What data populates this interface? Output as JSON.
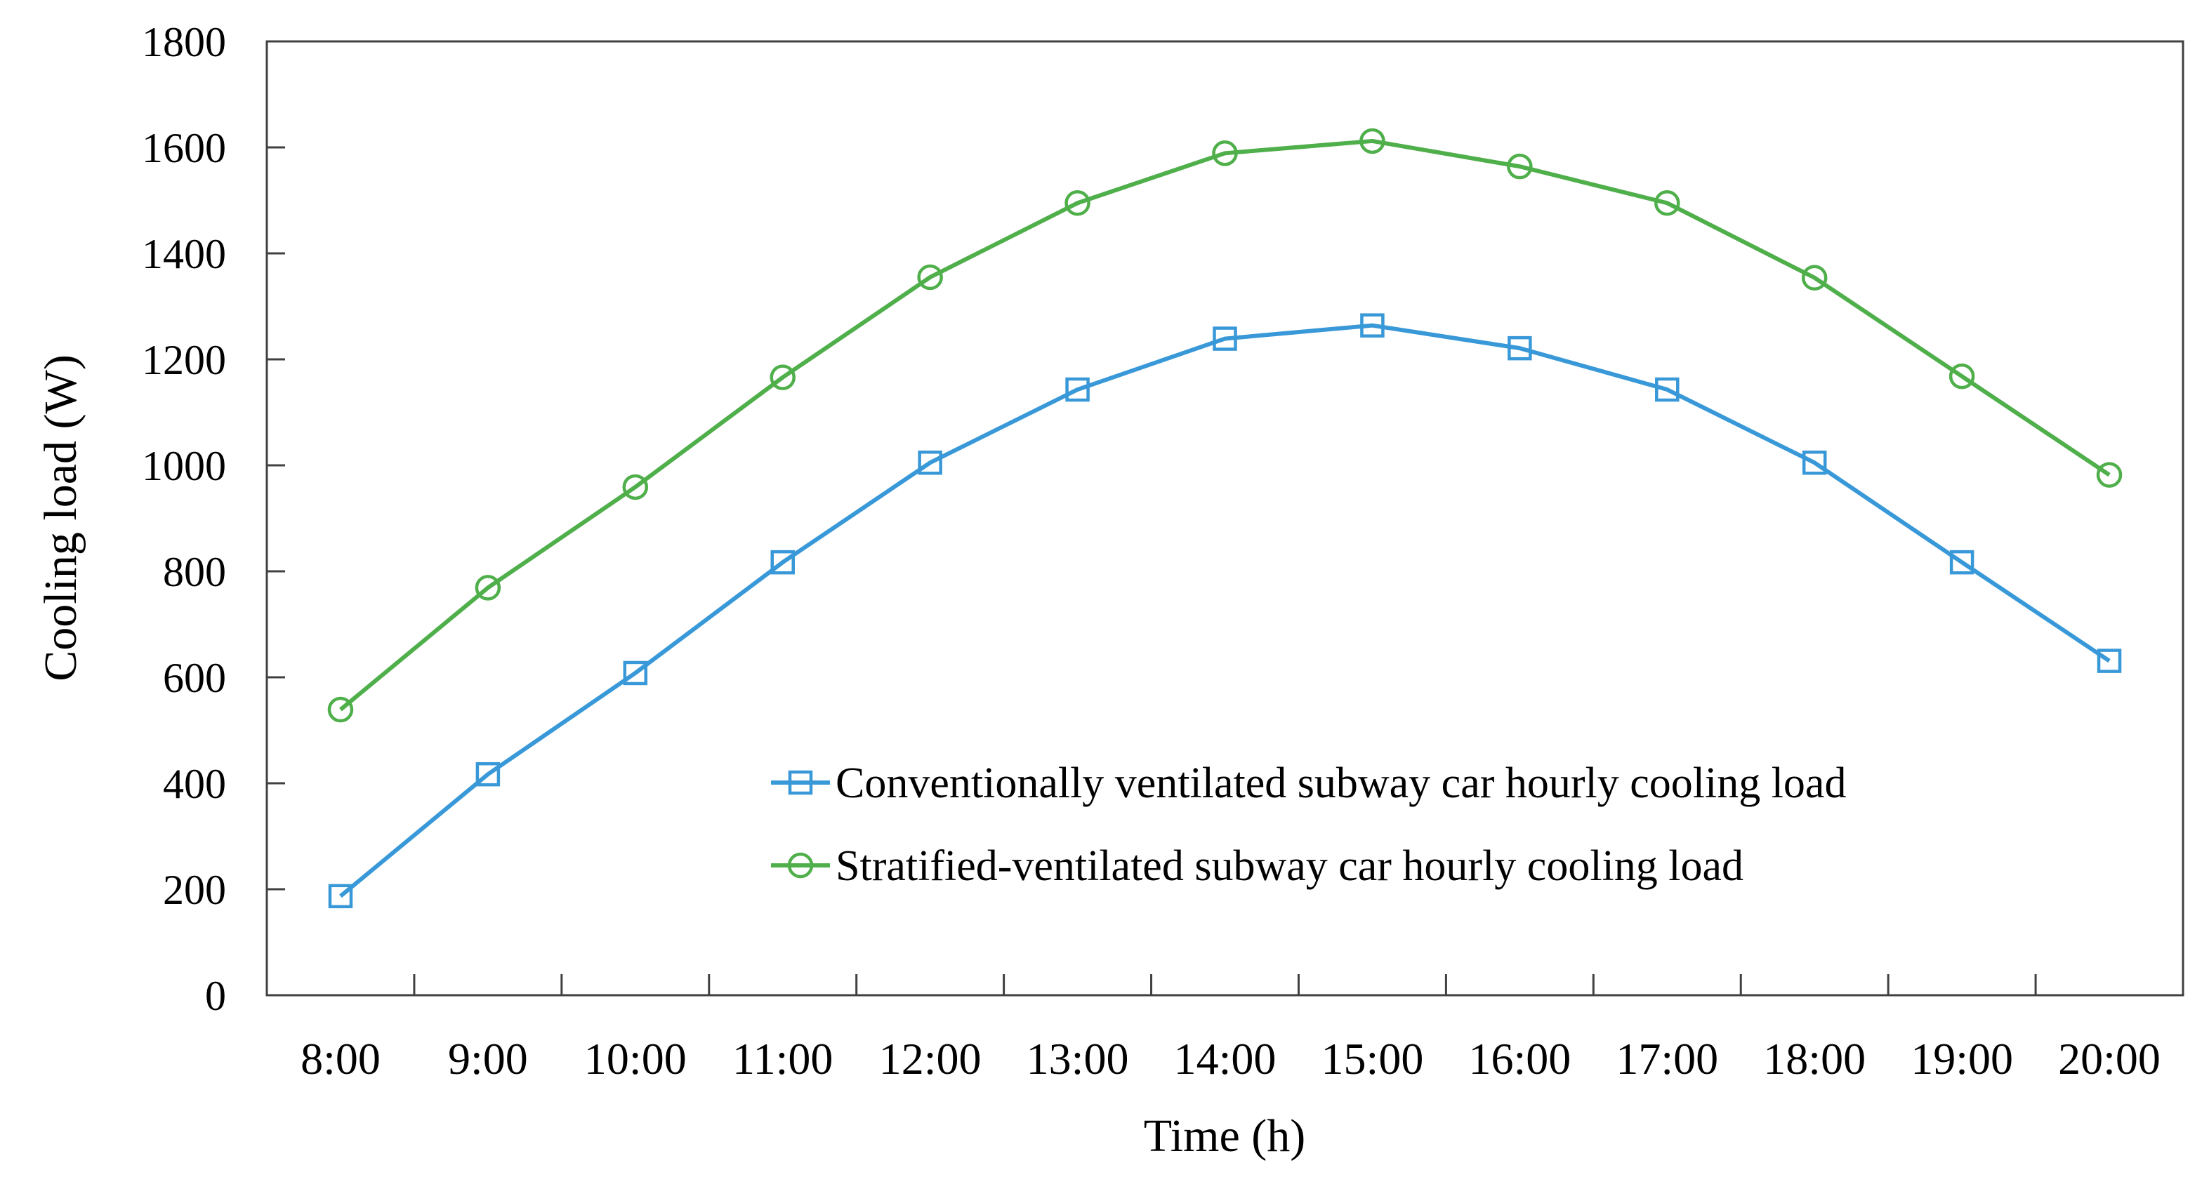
{
  "figure": {
    "background": "#ffffff",
    "frame_color": "#404040",
    "text_color": "#000000"
  },
  "chart_data": {
    "type": "line",
    "title": "",
    "xlabel": "Time (h)",
    "ylabel": "Cooling load (W)",
    "ylim": [
      0,
      1800
    ],
    "y_tick_step": 200,
    "y_tick_labels": [
      "0",
      "200",
      "400",
      "600",
      "800",
      "1000",
      "1200",
      "1400",
      "1600",
      "1800"
    ],
    "grid": false,
    "legend_position": "inside lower-right area, stacked rows",
    "categories": [
      "8:00",
      "9:00",
      "10:00",
      "11:00",
      "12:00",
      "13:00",
      "14:00",
      "15:00",
      "16:00",
      "17:00",
      "18:00",
      "19:00",
      "20:00"
    ],
    "series": [
      {
        "name": "Conventionally ventilated subway car hourly cooling load",
        "marker": "square",
        "color": "#3999D8",
        "values": [
          187,
          417,
          608,
          817,
          1005,
          1143,
          1239,
          1264,
          1221,
          1143,
          1005,
          817,
          631
        ]
      },
      {
        "name": "Stratified-ventilated subway car hourly cooling load",
        "marker": "circle",
        "color": "#4FAF4A",
        "values": [
          539,
          769,
          959,
          1166,
          1355,
          1495,
          1589,
          1612,
          1564,
          1495,
          1354,
          1168,
          982
        ]
      }
    ]
  }
}
